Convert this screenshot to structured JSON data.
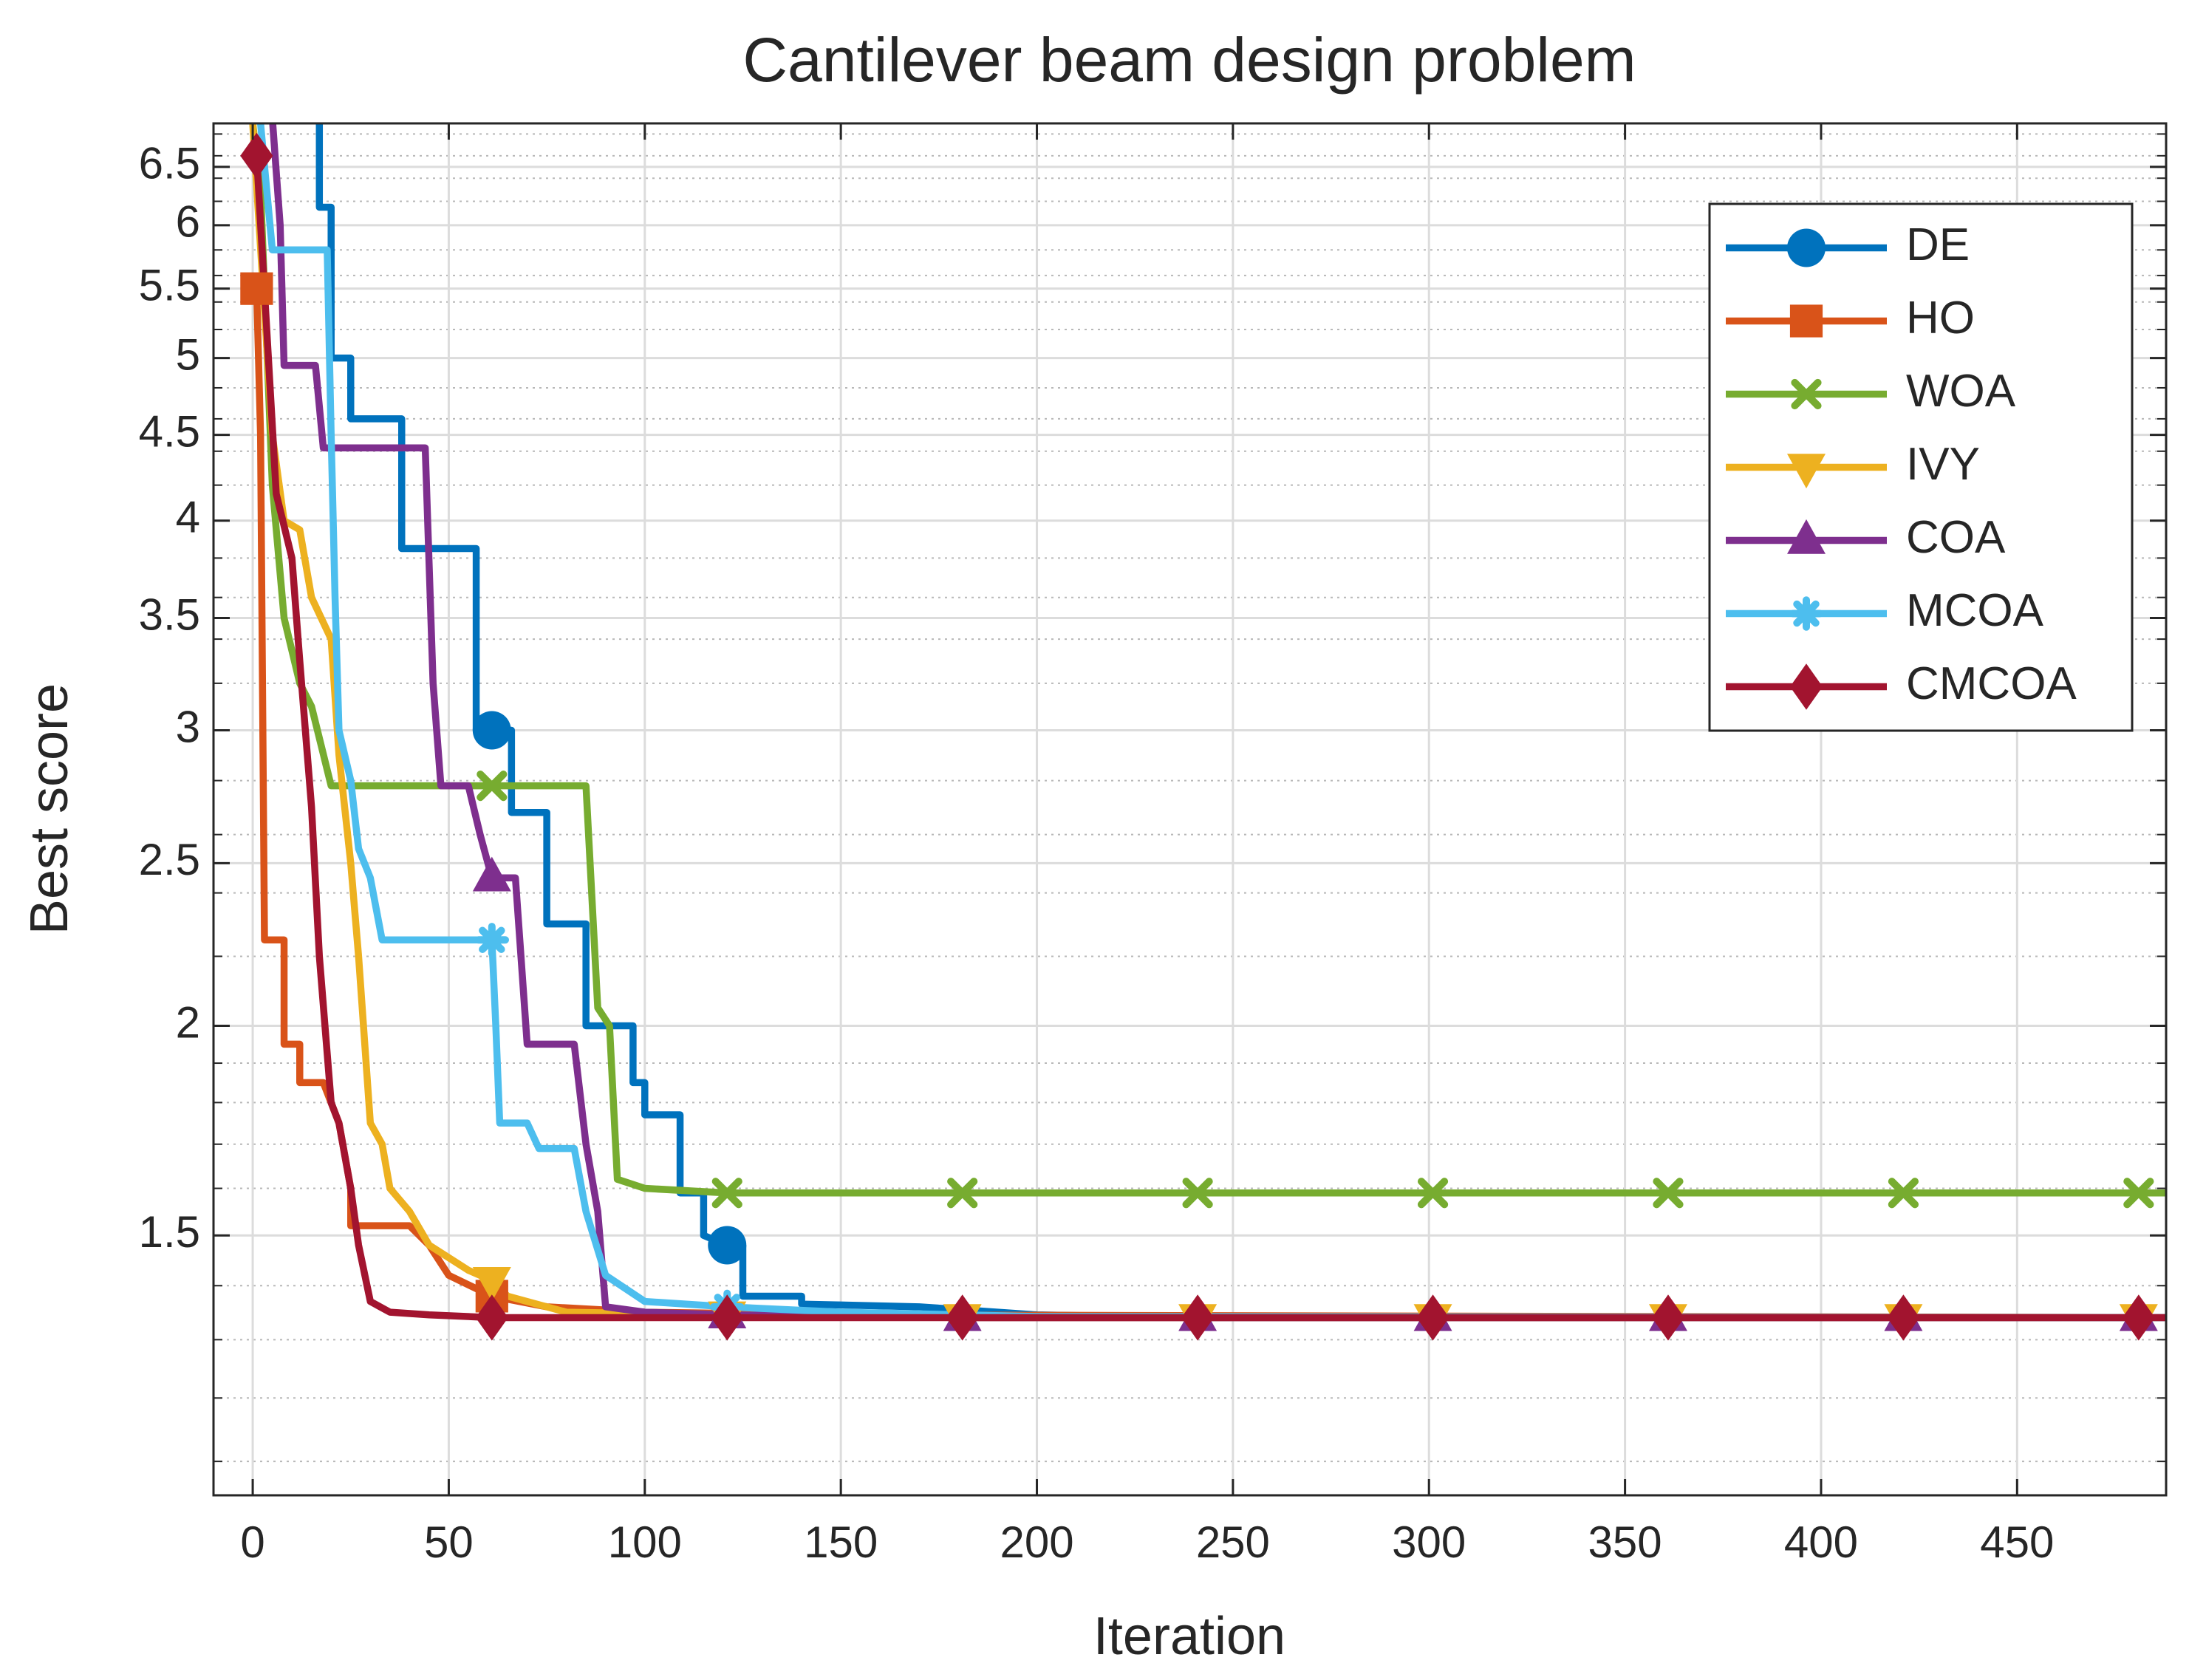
{
  "chart_data": {
    "type": "line",
    "title": "Cantilever beam design problem",
    "xlabel": "Iteration",
    "ylabel": "Best score",
    "xlim": [
      -10,
      488
    ],
    "xticks": [
      0,
      50,
      100,
      150,
      200,
      250,
      300,
      350,
      400,
      450
    ],
    "ylim": [
      1.05,
      6.9
    ],
    "log_y": true,
    "yticks": [
      1.5,
      2,
      2.5,
      3,
      3.5,
      4,
      4.5,
      5,
      5.5,
      6,
      6.5
    ],
    "yminorticks": [
      1.1,
      1.2,
      1.3,
      1.4,
      1.6,
      1.7,
      1.8,
      1.9,
      2.2,
      2.4,
      2.6,
      2.8,
      3.2,
      3.4,
      3.6,
      3.8,
      4.2,
      4.4,
      4.6,
      4.8,
      5.2,
      5.4,
      5.6,
      5.8,
      6.2,
      6.4,
      6.6,
      6.8
    ],
    "grid": true,
    "minor_grid": true,
    "legend": "northeast",
    "marker_every": 60,
    "marker_start": 1,
    "series": [
      {
        "name": "DE",
        "color": "#0072bd",
        "marker": "circle",
        "x": [
          0,
          17,
          17,
          20,
          20,
          25,
          25,
          38,
          38,
          57,
          57,
          61,
          66,
          66,
          75,
          75,
          85,
          85,
          97,
          97,
          100,
          100,
          109,
          109,
          115,
          115,
          121,
          125,
          125,
          140,
          140,
          170,
          200,
          240,
          488
        ],
        "values": [
          7.2,
          7.2,
          6.15,
          6.15,
          5.0,
          5.0,
          4.6,
          4.6,
          3.85,
          3.85,
          3.0,
          3.0,
          3.0,
          2.68,
          2.68,
          2.3,
          2.3,
          2.0,
          2.0,
          1.85,
          1.85,
          1.77,
          1.77,
          1.59,
          1.59,
          1.5,
          1.48,
          1.48,
          1.38,
          1.38,
          1.365,
          1.36,
          1.345,
          1.34,
          1.34
        ]
      },
      {
        "name": "HO",
        "color": "#d95319",
        "marker": "square",
        "x": [
          0,
          1,
          2,
          3,
          8,
          8,
          12,
          12,
          18,
          22,
          25,
          25,
          40,
          45,
          50,
          61,
          75,
          100,
          150,
          488
        ],
        "values": [
          5.5,
          5.5,
          4.5,
          2.25,
          2.25,
          1.95,
          1.95,
          1.85,
          1.85,
          1.75,
          1.6,
          1.52,
          1.52,
          1.48,
          1.42,
          1.38,
          1.36,
          1.35,
          1.345,
          1.34
        ]
      },
      {
        "name": "WOA",
        "color": "#77ac30",
        "marker": "x",
        "x": [
          0,
          2,
          5,
          8,
          12,
          15,
          20,
          61,
          85,
          88,
          91,
          93,
          100,
          121,
          181,
          241,
          301,
          361,
          421,
          481,
          488
        ],
        "values": [
          6.9,
          6.3,
          4.2,
          3.5,
          3.2,
          3.1,
          2.78,
          2.78,
          2.78,
          2.05,
          2.0,
          1.62,
          1.6,
          1.59,
          1.59,
          1.59,
          1.59,
          1.59,
          1.59,
          1.59,
          1.59
        ]
      },
      {
        "name": "IVY",
        "color": "#edb120",
        "marker": "triangle-down",
        "x": [
          0,
          5,
          8,
          12,
          15,
          20,
          22,
          25,
          27,
          30,
          33,
          35,
          40,
          45,
          55,
          61,
          65,
          80,
          121,
          181,
          241,
          301,
          361,
          421,
          481,
          488
        ],
        "values": [
          6.9,
          4.5,
          4.0,
          3.95,
          3.6,
          3.4,
          2.9,
          2.5,
          2.2,
          1.75,
          1.7,
          1.6,
          1.55,
          1.48,
          1.43,
          1.41,
          1.38,
          1.35,
          1.345,
          1.34,
          1.34,
          1.34,
          1.34,
          1.34,
          1.34,
          1.34
        ]
      },
      {
        "name": "COA",
        "color": "#7e2f8e",
        "marker": "triangle-up",
        "x": [
          5,
          7,
          8,
          16,
          18,
          44,
          46,
          48,
          55,
          58,
          61,
          67,
          70,
          82,
          85,
          88,
          90,
          100,
          121,
          181,
          241,
          301,
          361,
          421,
          481,
          488
        ],
        "values": [
          6.95,
          6.0,
          4.95,
          4.95,
          4.42,
          4.42,
          3.2,
          2.78,
          2.78,
          2.6,
          2.45,
          2.45,
          1.95,
          1.95,
          1.7,
          1.55,
          1.36,
          1.35,
          1.345,
          1.34,
          1.34,
          1.34,
          1.34,
          1.34,
          1.34,
          1.34
        ]
      },
      {
        "name": "MCOA",
        "color": "#4dbeee",
        "marker": "asterisk",
        "x": [
          2,
          5,
          19,
          20,
          21,
          22,
          25,
          27,
          30,
          33,
          61,
          62,
          63,
          70,
          73,
          82,
          85,
          90,
          100,
          121,
          150,
          200,
          488
        ],
        "values": [
          6.9,
          5.8,
          5.8,
          4.5,
          3.6,
          3.0,
          2.8,
          2.55,
          2.45,
          2.25,
          2.25,
          2.0,
          1.75,
          1.75,
          1.69,
          1.69,
          1.55,
          1.42,
          1.37,
          1.36,
          1.35,
          1.342,
          1.34
        ]
      },
      {
        "name": "CMCOA",
        "color": "#a2142f",
        "marker": "diamond",
        "x": [
          1,
          4,
          6,
          10,
          12,
          15,
          17,
          20,
          22,
          25,
          27,
          30,
          35,
          45,
          61,
          121,
          181,
          241,
          301,
          361,
          421,
          481,
          488
        ],
        "values": [
          6.6,
          5.0,
          4.15,
          3.8,
          3.3,
          2.7,
          2.2,
          1.8,
          1.75,
          1.6,
          1.48,
          1.37,
          1.35,
          1.345,
          1.34,
          1.34,
          1.34,
          1.34,
          1.34,
          1.34,
          1.34,
          1.34,
          1.34
        ]
      }
    ]
  }
}
